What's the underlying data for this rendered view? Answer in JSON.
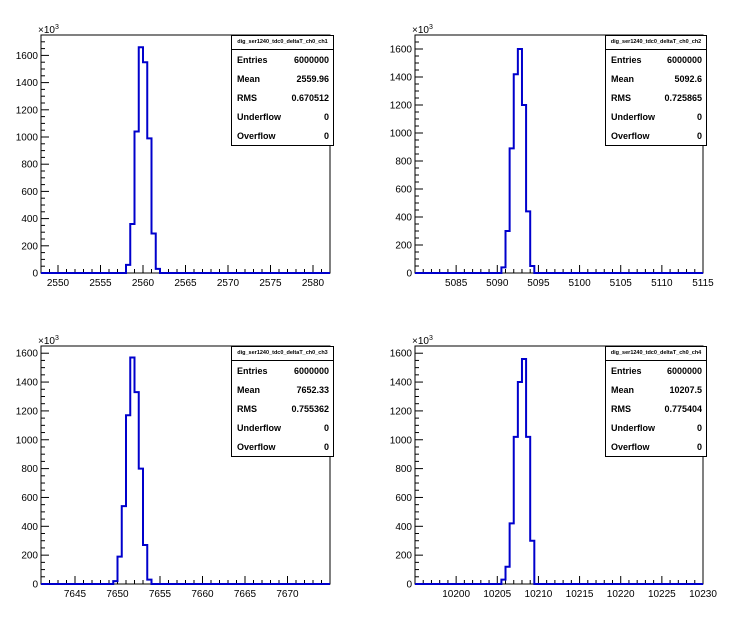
{
  "chart_data": [
    {
      "type": "histogram",
      "ylabel_exponent": "10",
      "exponent_sup": "3",
      "x_ticks": [
        2550,
        2555,
        2560,
        2565,
        2570,
        2575,
        2580
      ],
      "xlim": [
        2548,
        2582
      ],
      "y_ticks": [
        0,
        200,
        400,
        600,
        800,
        1000,
        1200,
        1400,
        1600
      ],
      "ylim": [
        0,
        1750
      ],
      "bin_edges": [
        2558,
        2558.5,
        2559,
        2559.5,
        2560,
        2560.5,
        2561,
        2561.5,
        2562
      ],
      "bin_values": [
        60,
        360,
        1040,
        1660,
        1550,
        990,
        290,
        30
      ],
      "stats": {
        "title": "dig_ser1240_tdc0_deltaT_ch0_ch1",
        "rows": [
          {
            "label": "Entries",
            "value": "6000000"
          },
          {
            "label": "Mean",
            "value": "2559.96"
          },
          {
            "label": "RMS",
            "value": "0.670512"
          },
          {
            "label": "Underflow",
            "value": "0"
          },
          {
            "label": "Overflow",
            "value": "0"
          }
        ]
      }
    },
    {
      "type": "histogram",
      "ylabel_exponent": "10",
      "exponent_sup": "3",
      "x_ticks": [
        5085,
        5090,
        5095,
        5100,
        5105,
        5110,
        5115
      ],
      "xlim": [
        5080,
        5115
      ],
      "y_ticks": [
        0,
        200,
        400,
        600,
        800,
        1000,
        1200,
        1400,
        1600
      ],
      "ylim": [
        0,
        1700
      ],
      "bin_edges": [
        5090.5,
        5091,
        5091.5,
        5092,
        5092.5,
        5093,
        5093.5,
        5094,
        5094.5
      ],
      "bin_values": [
        40,
        300,
        890,
        1420,
        1600,
        1200,
        440,
        50
      ],
      "stats": {
        "title": "dig_ser1240_tdc0_deltaT_ch0_ch2",
        "rows": [
          {
            "label": "Entries",
            "value": "6000000"
          },
          {
            "label": "Mean",
            "value": "5092.6"
          },
          {
            "label": "RMS",
            "value": "0.725865"
          },
          {
            "label": "Underflow",
            "value": "0"
          },
          {
            "label": "Overflow",
            "value": "0"
          }
        ]
      }
    },
    {
      "type": "histogram",
      "ylabel_exponent": "10",
      "exponent_sup": "3",
      "x_ticks": [
        7645,
        7650,
        7655,
        7660,
        7665,
        7670
      ],
      "xlim": [
        7641,
        7675
      ],
      "y_ticks": [
        0,
        200,
        400,
        600,
        800,
        1000,
        1200,
        1400,
        1600
      ],
      "ylim": [
        0,
        1650
      ],
      "bin_edges": [
        7649.5,
        7650,
        7650.5,
        7651,
        7651.5,
        7652,
        7652.5,
        7653,
        7653.5,
        7654
      ],
      "bin_values": [
        20,
        190,
        540,
        1170,
        1570,
        1330,
        800,
        270,
        30
      ],
      "stats": {
        "title": "dig_ser1240_tdc0_deltaT_ch0_ch3",
        "rows": [
          {
            "label": "Entries",
            "value": "6000000"
          },
          {
            "label": "Mean",
            "value": "7652.33"
          },
          {
            "label": "RMS",
            "value": "0.755362"
          },
          {
            "label": "Underflow",
            "value": "0"
          },
          {
            "label": "Overflow",
            "value": "0"
          }
        ]
      }
    },
    {
      "type": "histogram",
      "ylabel_exponent": "10",
      "exponent_sup": "3",
      "x_ticks": [
        10200,
        10205,
        10210,
        10215,
        10220,
        10225,
        10230
      ],
      "xlim": [
        10195,
        10230
      ],
      "y_ticks": [
        0,
        200,
        400,
        600,
        800,
        1000,
        1200,
        1400,
        1600
      ],
      "ylim": [
        0,
        1650
      ],
      "bin_edges": [
        10205.5,
        10206,
        10206.5,
        10207,
        10207.5,
        10208,
        10208.5,
        10209,
        10209.5
      ],
      "bin_values": [
        30,
        120,
        420,
        1020,
        1400,
        1560,
        1020,
        300
      ],
      "stats": {
        "title": "dig_ser1240_tdc0_deltaT_ch0_ch4",
        "rows": [
          {
            "label": "Entries",
            "value": "6000000"
          },
          {
            "label": "Mean",
            "value": "10207.5"
          },
          {
            "label": "RMS",
            "value": "0.775404"
          },
          {
            "label": "Underflow",
            "value": "0"
          },
          {
            "label": "Overflow",
            "value": "0"
          }
        ]
      }
    }
  ]
}
